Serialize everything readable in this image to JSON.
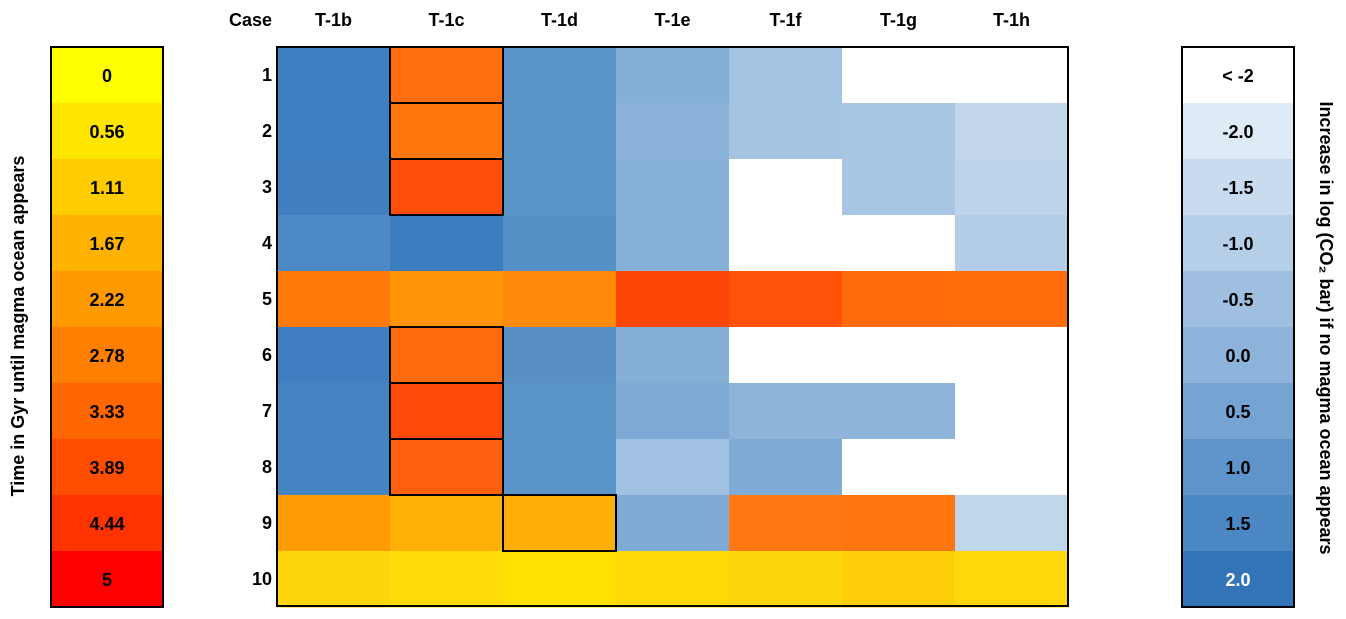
{
  "chart_data": [
    {
      "type": "heatmap",
      "corner_label": "Case",
      "columns": [
        "T-1b",
        "T-1c",
        "T-1d",
        "T-1e",
        "T-1f",
        "T-1g",
        "T-1h"
      ],
      "rows": [
        "1",
        "2",
        "3",
        "4",
        "5",
        "6",
        "7",
        "8",
        "9",
        "10"
      ],
      "cell_colors": [
        [
          "#3e7fc1",
          "#ff6e0e",
          "#5b94c8",
          "#84afd7",
          "#a3c3e3",
          "#ffffff",
          "#ffffff"
        ],
        [
          "#3e7fc1",
          "#ff760b",
          "#5b94c8",
          "#8ab2d8",
          "#a6c4e2",
          "#a8c6e3",
          "#c2d7eb"
        ],
        [
          "#4080c1",
          "#ff4e0c",
          "#5b94c8",
          "#86b0d8",
          "#ffffff",
          "#a8c6e3",
          "#bcd3ea"
        ],
        [
          "#4c89c5",
          "#3b7dbf",
          "#5590c6",
          "#87b0d8",
          "#ffffff",
          "#ffffff",
          "#b3cde7"
        ],
        [
          "#ff7a0b",
          "#ff9408",
          "#ff8a0a",
          "#ff4609",
          "#ff5108",
          "#ff6a0b",
          "#ff6c0b"
        ],
        [
          "#3f7fc1",
          "#ff6a0e",
          "#5890c6",
          "#84aed6",
          "#ffffff",
          "#ffffff",
          "#ffffff"
        ],
        [
          "#4484c2",
          "#ff4a0a",
          "#5b94c8",
          "#7ea9d5",
          "#8eb4da",
          "#8eb4da",
          "#ffffff"
        ],
        [
          "#4484c2",
          "#ff600e",
          "#5b94c8",
          "#a1c1e2",
          "#80abd6",
          "#ffffff",
          "#ffffff"
        ],
        [
          "#ff9b05",
          "#ffb108",
          "#ffb008",
          "#80abd6",
          "#ff7812",
          "#ff760e",
          "#c0d6eb"
        ],
        [
          "#ffd60b",
          "#ffdc05",
          "#ffe000",
          "#ffd906",
          "#ffd60b",
          "#ffce0b",
          "#ffd70a"
        ]
      ],
      "outlined_cells": [
        [
          1,
          0
        ],
        [
          1,
          1
        ],
        [
          1,
          2
        ],
        [
          1,
          5
        ],
        [
          1,
          6
        ],
        [
          1,
          7
        ],
        [
          2,
          8
        ]
      ],
      "legends": [
        {
          "name": "left",
          "label": "Time in Gyr until magma ocean appears",
          "items": [
            {
              "label": "0",
              "color": "#ffff00"
            },
            {
              "label": "0.56",
              "color": "#ffe600"
            },
            {
              "label": "1.11",
              "color": "#ffcc00"
            },
            {
              "label": "1.67",
              "color": "#ffb300"
            },
            {
              "label": "2.22",
              "color": "#ff9900"
            },
            {
              "label": "2.78",
              "color": "#ff8000"
            },
            {
              "label": "3.33",
              "color": "#ff6600"
            },
            {
              "label": "3.89",
              "color": "#ff4d00"
            },
            {
              "label": "4.44",
              "color": "#ff3300"
            },
            {
              "label": "5",
              "color": "#ff0000"
            }
          ]
        },
        {
          "name": "right",
          "label": "Increase in log (CO₂ bar) if no magma ocean appears",
          "items": [
            {
              "label": "< -2",
              "color": "#ffffff"
            },
            {
              "label": "-2.0",
              "color": "#deeaf6"
            },
            {
              "label": "-1.5",
              "color": "#c9dcef"
            },
            {
              "label": "-1.0",
              "color": "#b6cfe8"
            },
            {
              "label": "-0.5",
              "color": "#a0c0e1"
            },
            {
              "label": "0.0",
              "color": "#8db3da"
            },
            {
              "label": "0.5",
              "color": "#76a4d2"
            },
            {
              "label": "1.0",
              "color": "#5e94ca"
            },
            {
              "label": "1.5",
              "color": "#4a87c3"
            },
            {
              "label": "2.0",
              "color": "#3373b8"
            }
          ]
        }
      ]
    }
  ]
}
